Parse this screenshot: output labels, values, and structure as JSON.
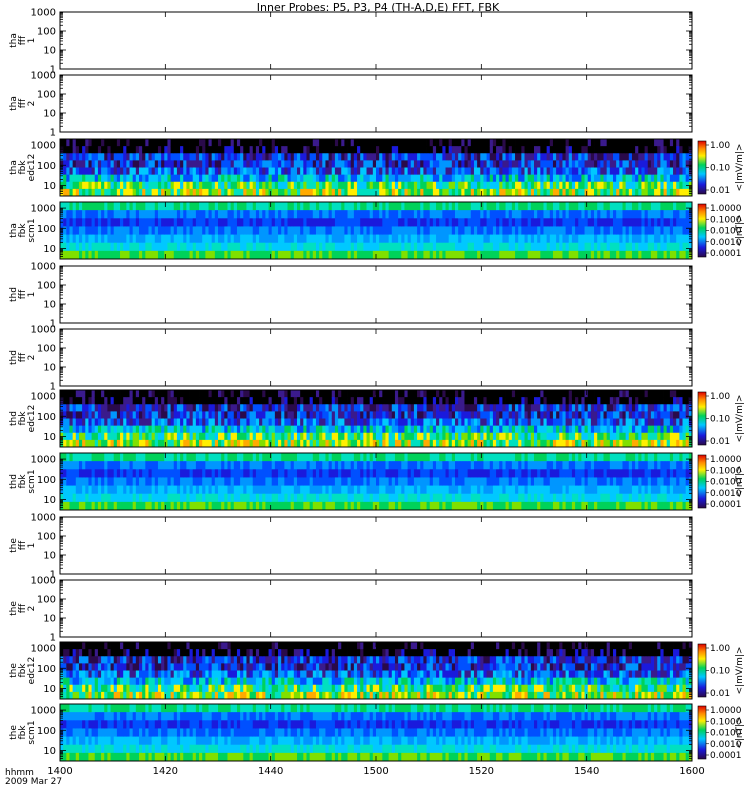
{
  "chart_data": {
    "type": "heatmap",
    "title": "Inner Probes: P5, P3, P4 (TH-A,D,E) FFT, FBK",
    "x_axis": {
      "tick_labels": [
        "1400",
        "1420",
        "1440",
        "1500",
        "1520",
        "1540",
        "1600"
      ],
      "label_line1": "hhmm",
      "label_line2": "2009 Mar 27"
    },
    "panels": [
      {
        "id": "tha-fff-1",
        "ylabel": [
          "tha",
          "fff",
          "1"
        ],
        "kind": "empty",
        "ylim": [
          1,
          1000
        ],
        "yticks": [
          "1000",
          "100",
          "10",
          "1"
        ]
      },
      {
        "id": "tha-fff-2",
        "ylabel": [
          "tha",
          "fff",
          "2"
        ],
        "kind": "empty",
        "ylim": [
          1,
          1000
        ],
        "yticks": [
          "1000",
          "100",
          "10",
          "1"
        ]
      },
      {
        "id": "tha-fbk-edc12",
        "ylabel": [
          "tha",
          "fbk",
          "edc12"
        ],
        "kind": "efield",
        "ylim": [
          3,
          2000
        ],
        "yticks": [
          "1000",
          "100",
          "10"
        ],
        "colorbar": {
          "ticks": [
            "1.00",
            "0.10",
            "0.01"
          ],
          "label": "<|mV/m|>"
        }
      },
      {
        "id": "tha-fbk-scm1",
        "ylabel": [
          "tha",
          "fbk",
          "scm1"
        ],
        "kind": "bfield",
        "ylim": [
          3,
          2000
        ],
        "yticks": [
          "1000",
          "100",
          "10"
        ],
        "colorbar": {
          "ticks": [
            "1.0000",
            "0.1000",
            "0.0100",
            "0.0010",
            "0.0001"
          ],
          "label": "<|nT|>"
        }
      },
      {
        "id": "thd-fff-1",
        "ylabel": [
          "thd",
          "fff",
          "1"
        ],
        "kind": "empty",
        "ylim": [
          1,
          1000
        ],
        "yticks": [
          "1000",
          "100",
          "10",
          "1"
        ]
      },
      {
        "id": "thd-fff-2",
        "ylabel": [
          "thd",
          "fff",
          "2"
        ],
        "kind": "empty",
        "ylim": [
          1,
          1000
        ],
        "yticks": [
          "1000",
          "100",
          "10",
          "1"
        ]
      },
      {
        "id": "thd-fbk-edc12",
        "ylabel": [
          "thd",
          "fbk",
          "edc12"
        ],
        "kind": "efield",
        "ylim": [
          3,
          2000
        ],
        "yticks": [
          "1000",
          "100",
          "10"
        ],
        "colorbar": {
          "ticks": [
            "1.00",
            "0.10",
            "0.01"
          ],
          "label": "<|mV/m|>"
        }
      },
      {
        "id": "thd-fbk-scm1",
        "ylabel": [
          "thd",
          "fbk",
          "scm1"
        ],
        "kind": "bfield",
        "ylim": [
          3,
          2000
        ],
        "yticks": [
          "1000",
          "100",
          "10"
        ],
        "colorbar": {
          "ticks": [
            "1.0000",
            "0.1000",
            "0.0100",
            "0.0010",
            "0.0001"
          ],
          "label": "<|nT|>"
        }
      },
      {
        "id": "the-fff-1",
        "ylabel": [
          "the",
          "fff",
          "1"
        ],
        "kind": "empty",
        "ylim": [
          1,
          1000
        ],
        "yticks": [
          "1000",
          "100",
          "10",
          "1"
        ]
      },
      {
        "id": "the-fff-2",
        "ylabel": [
          "the",
          "fff",
          "2"
        ],
        "kind": "empty",
        "ylim": [
          1,
          1000
        ],
        "yticks": [
          "1000",
          "100",
          "10",
          "1"
        ]
      },
      {
        "id": "the-fbk-edc12",
        "ylabel": [
          "the",
          "fbk",
          "edc12"
        ],
        "kind": "efield",
        "ylim": [
          3,
          2000
        ],
        "yticks": [
          "1000",
          "100",
          "10"
        ],
        "colorbar": {
          "ticks": [
            "1.00",
            "0.10",
            "0.01"
          ],
          "label": "<|mV/m|>"
        }
      },
      {
        "id": "the-fbk-scm1",
        "ylabel": [
          "the",
          "fbk",
          "scm1"
        ],
        "kind": "bfield",
        "ylim": [
          3,
          2000
        ],
        "yticks": [
          "1000",
          "100",
          "10"
        ],
        "colorbar": {
          "ticks": [
            "1.0000",
            "0.1000",
            "0.0100",
            "0.0010",
            "0.0001"
          ],
          "label": "<|nT|>"
        }
      }
    ],
    "grid": false,
    "y_scale": "log"
  }
}
